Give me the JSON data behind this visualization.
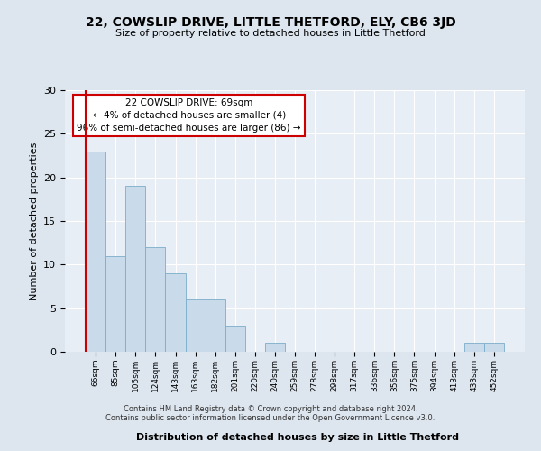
{
  "title": "22, COWSLIP DRIVE, LITTLE THETFORD, ELY, CB6 3JD",
  "subtitle": "Size of property relative to detached houses in Little Thetford",
  "xlabel": "Distribution of detached houses by size in Little Thetford",
  "ylabel": "Number of detached properties",
  "bin_labels": [
    "66sqm",
    "85sqm",
    "105sqm",
    "124sqm",
    "143sqm",
    "163sqm",
    "182sqm",
    "201sqm",
    "220sqm",
    "240sqm",
    "259sqm",
    "278sqm",
    "298sqm",
    "317sqm",
    "336sqm",
    "356sqm",
    "375sqm",
    "394sqm",
    "413sqm",
    "433sqm",
    "452sqm"
  ],
  "bar_values": [
    23,
    11,
    19,
    12,
    9,
    6,
    6,
    3,
    0,
    1,
    0,
    0,
    0,
    0,
    0,
    0,
    0,
    0,
    0,
    1,
    1
  ],
  "bar_color": "#c9daea",
  "bar_edge_color": "#7badc8",
  "annotation_title": "22 COWSLIP DRIVE: 69sqm",
  "annotation_line1": "← 4% of detached houses are smaller (4)",
  "annotation_line2": "96% of semi-detached houses are larger (86) →",
  "annotation_box_edge_color": "#cc0000",
  "ylim": [
    0,
    30
  ],
  "yticks": [
    0,
    5,
    10,
    15,
    20,
    25,
    30
  ],
  "footer1": "Contains HM Land Registry data © Crown copyright and database right 2024.",
  "footer2": "Contains public sector information licensed under the Open Government Licence v3.0.",
  "bg_color": "#dde6ef",
  "plot_bg_color": "#e8eef5"
}
